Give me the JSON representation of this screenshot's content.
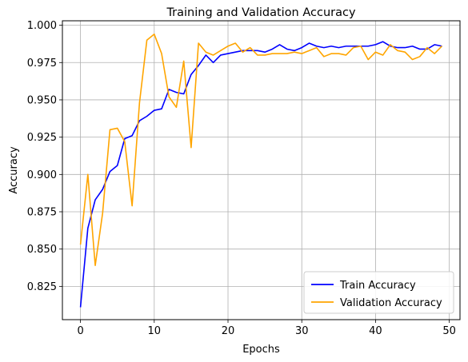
{
  "chart_data": {
    "type": "line",
    "title": "Training and Validation Accuracy",
    "xlabel": "Epochs",
    "ylabel": "Accuracy",
    "xlim": [
      -2.45,
      51.45
    ],
    "ylim": [
      0.8027,
      1.003
    ],
    "grid": true,
    "legend_position": "lower-right",
    "xticks": [
      0,
      10,
      20,
      30,
      40,
      50
    ],
    "yticks": [
      0.825,
      0.85,
      0.875,
      0.9,
      0.925,
      0.95,
      0.975,
      1.0
    ],
    "ytick_labels": [
      "0.825",
      "0.850",
      "0.875",
      "0.900",
      "0.925",
      "0.950",
      "0.975",
      "1.000"
    ],
    "x": [
      0,
      1,
      2,
      3,
      4,
      5,
      6,
      7,
      8,
      9,
      10,
      11,
      12,
      13,
      14,
      15,
      16,
      17,
      18,
      19,
      20,
      21,
      22,
      23,
      24,
      25,
      26,
      27,
      28,
      29,
      30,
      31,
      32,
      33,
      34,
      35,
      36,
      37,
      38,
      39,
      40,
      41,
      42,
      43,
      44,
      45,
      46,
      47,
      48,
      49
    ],
    "series": [
      {
        "name": "Train Accuracy",
        "color": "#0000ff",
        "values": [
          0.811,
          0.864,
          0.883,
          0.89,
          0.902,
          0.906,
          0.924,
          0.926,
          0.936,
          0.939,
          0.943,
          0.944,
          0.957,
          0.955,
          0.954,
          0.967,
          0.973,
          0.98,
          0.975,
          0.98,
          0.981,
          0.982,
          0.983,
          0.983,
          0.983,
          0.982,
          0.984,
          0.987,
          0.984,
          0.983,
          0.985,
          0.988,
          0.986,
          0.985,
          0.986,
          0.985,
          0.986,
          0.986,
          0.986,
          0.986,
          0.987,
          0.989,
          0.986,
          0.985,
          0.985,
          0.986,
          0.984,
          0.984,
          0.987,
          0.986
        ]
      },
      {
        "name": "Validation Accuracy",
        "color": "#ffa500",
        "values": [
          0.853,
          0.9,
          0.839,
          0.874,
          0.93,
          0.931,
          0.922,
          0.879,
          0.948,
          0.99,
          0.994,
          0.981,
          0.952,
          0.945,
          0.976,
          0.918,
          0.988,
          0.982,
          0.98,
          0.983,
          0.986,
          0.988,
          0.982,
          0.985,
          0.98,
          0.98,
          0.981,
          0.981,
          0.981,
          0.982,
          0.981,
          0.983,
          0.985,
          0.979,
          0.981,
          0.981,
          0.98,
          0.985,
          0.986,
          0.977,
          0.982,
          0.98,
          0.987,
          0.983,
          0.982,
          0.977,
          0.979,
          0.985,
          0.981,
          0.986
        ]
      }
    ]
  }
}
